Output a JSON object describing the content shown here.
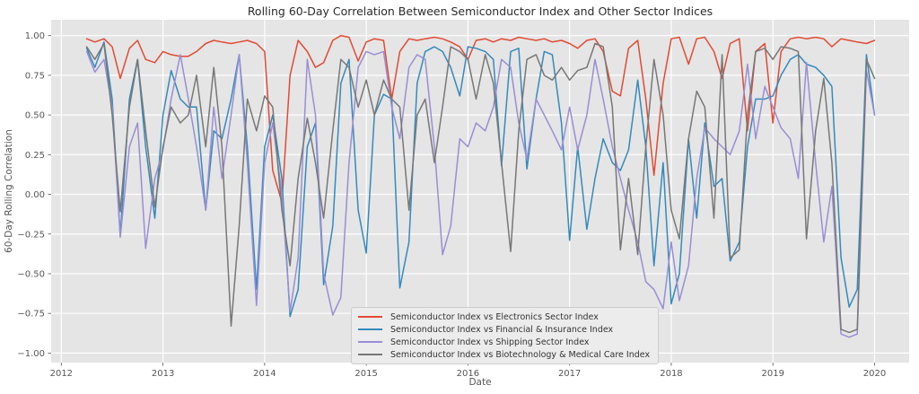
{
  "figure": {
    "title": "Rolling 60-Day Correlation Between Semiconductor Index and Other Sector Indices",
    "background_color": "#ffffff",
    "plot_background_color": "#e5e5e5",
    "gridline_color": "#ffffff",
    "tick_label_color": "#555555",
    "title_color": "#2b2b2b"
  },
  "chart_data": {
    "type": "line",
    "title": "Rolling 60-Day Correlation Between Semiconductor Index and Other Sector Indices",
    "xlabel": "Date",
    "ylabel": "60-Day Rolling Correlation",
    "grid": true,
    "legend_position": "lower center-left",
    "xlim": [
      2011.9,
      2020.34
    ],
    "ylim": [
      -1.06,
      1.1
    ],
    "x_ticks": [
      2012,
      2013,
      2014,
      2015,
      2016,
      2017,
      2018,
      2019,
      2020
    ],
    "x_tick_labels": [
      "2012",
      "2013",
      "2014",
      "2015",
      "2016",
      "2017",
      "2018",
      "2019",
      "2020"
    ],
    "y_ticks": [
      1.0,
      0.75,
      0.5,
      0.25,
      0.0,
      -0.25,
      -0.5,
      -0.75,
      -1.0
    ],
    "y_tick_labels": [
      "1.00",
      "0.75",
      "0.50",
      "0.25",
      "0.00",
      "−0.25",
      "−0.50",
      "−0.75",
      "−1.00"
    ],
    "x": [
      2012.25,
      2012.33,
      2012.42,
      2012.5,
      2012.58,
      2012.67,
      2012.75,
      2012.83,
      2012.92,
      2013.0,
      2013.08,
      2013.17,
      2013.25,
      2013.33,
      2013.42,
      2013.5,
      2013.58,
      2013.67,
      2013.75,
      2013.83,
      2013.92,
      2014.0,
      2014.08,
      2014.17,
      2014.25,
      2014.33,
      2014.42,
      2014.5,
      2014.58,
      2014.67,
      2014.75,
      2014.83,
      2014.92,
      2015.0,
      2015.08,
      2015.17,
      2015.25,
      2015.33,
      2015.42,
      2015.5,
      2015.58,
      2015.67,
      2015.75,
      2015.83,
      2015.92,
      2016.0,
      2016.08,
      2016.17,
      2016.25,
      2016.33,
      2016.42,
      2016.5,
      2016.58,
      2016.67,
      2016.75,
      2016.83,
      2016.92,
      2017.0,
      2017.08,
      2017.17,
      2017.25,
      2017.33,
      2017.42,
      2017.5,
      2017.58,
      2017.67,
      2017.75,
      2017.83,
      2017.92,
      2018.0,
      2018.08,
      2018.17,
      2018.25,
      2018.33,
      2018.42,
      2018.5,
      2018.58,
      2018.67,
      2018.75,
      2018.83,
      2018.92,
      2019.0,
      2019.08,
      2019.17,
      2019.25,
      2019.33,
      2019.42,
      2019.5,
      2019.58,
      2019.67,
      2019.75,
      2019.83,
      2019.92,
      2020.0
    ],
    "series": [
      {
        "name": "Semiconductor Index vs Electronics Sector Index",
        "color": "#E24A33",
        "values": [
          0.98,
          0.96,
          0.98,
          0.93,
          0.73,
          0.92,
          0.97,
          0.85,
          0.83,
          0.9,
          0.88,
          0.87,
          0.87,
          0.9,
          0.95,
          0.97,
          0.96,
          0.95,
          0.96,
          0.97,
          0.95,
          0.9,
          0.15,
          -0.05,
          0.75,
          0.97,
          0.9,
          0.8,
          0.83,
          0.97,
          1.0,
          0.99,
          0.84,
          0.96,
          0.98,
          0.97,
          0.6,
          0.9,
          0.98,
          0.97,
          0.98,
          0.99,
          0.98,
          0.96,
          0.93,
          0.85,
          0.97,
          0.98,
          0.96,
          0.98,
          0.97,
          0.99,
          0.98,
          0.97,
          0.98,
          0.96,
          0.97,
          0.95,
          0.92,
          0.97,
          0.98,
          0.9,
          0.65,
          0.62,
          0.92,
          0.97,
          0.6,
          0.12,
          0.7,
          0.98,
          0.99,
          0.82,
          0.98,
          0.99,
          0.9,
          0.73,
          0.95,
          0.98,
          0.4,
          0.9,
          0.95,
          0.45,
          0.9,
          0.98,
          0.99,
          0.98,
          0.99,
          0.98,
          0.93,
          0.98,
          0.97,
          0.96,
          0.95,
          0.97
        ]
      },
      {
        "name": "Semiconductor Index vs Financial & Insurance Index",
        "color": "#348ABD",
        "values": [
          0.92,
          0.8,
          0.96,
          0.6,
          -0.26,
          0.6,
          0.85,
          0.3,
          -0.15,
          0.5,
          0.78,
          0.6,
          0.55,
          0.55,
          -0.1,
          0.4,
          0.35,
          0.6,
          0.88,
          0.3,
          -0.6,
          0.3,
          0.5,
          0.1,
          -0.77,
          -0.6,
          0.3,
          0.45,
          -0.57,
          -0.2,
          0.7,
          0.85,
          -0.1,
          -0.37,
          0.5,
          0.63,
          0.6,
          -0.59,
          -0.3,
          0.7,
          0.9,
          0.93,
          0.9,
          0.8,
          0.62,
          0.93,
          0.92,
          0.9,
          0.85,
          0.18,
          0.9,
          0.92,
          0.16,
          0.6,
          0.9,
          0.88,
          0.45,
          -0.29,
          0.3,
          -0.22,
          0.1,
          0.35,
          0.2,
          0.15,
          0.28,
          0.72,
          0.3,
          -0.45,
          0.2,
          -0.69,
          -0.5,
          0.35,
          -0.15,
          0.45,
          0.05,
          0.1,
          -0.42,
          -0.3,
          0.3,
          0.6,
          0.6,
          0.62,
          0.75,
          0.85,
          0.88,
          0.82,
          0.8,
          0.75,
          0.68,
          -0.4,
          -0.71,
          -0.6,
          0.88,
          0.5
        ]
      },
      {
        "name": "Semiconductor Index vs Shipping Sector Index",
        "color": "#988ED5",
        "values": [
          0.9,
          0.77,
          0.85,
          0.55,
          -0.27,
          0.3,
          0.45,
          -0.34,
          0.1,
          0.28,
          0.6,
          0.88,
          0.6,
          0.3,
          -0.1,
          0.55,
          0.1,
          0.5,
          0.88,
          0.2,
          -0.7,
          0.2,
          0.45,
          0.0,
          -0.74,
          -0.4,
          0.85,
          0.5,
          -0.5,
          -0.76,
          -0.65,
          0.2,
          0.8,
          0.9,
          0.88,
          0.9,
          0.55,
          0.35,
          0.8,
          0.88,
          0.85,
          0.3,
          -0.38,
          -0.2,
          0.35,
          0.3,
          0.45,
          0.4,
          0.55,
          0.85,
          0.8,
          0.45,
          0.22,
          0.6,
          0.5,
          0.4,
          0.28,
          0.55,
          0.28,
          0.5,
          0.85,
          0.6,
          0.3,
          0.1,
          -0.1,
          -0.3,
          -0.55,
          -0.6,
          -0.72,
          -0.3,
          -0.67,
          -0.45,
          0.1,
          0.42,
          0.35,
          0.3,
          0.25,
          0.4,
          0.82,
          0.35,
          0.68,
          0.55,
          0.42,
          0.35,
          0.1,
          0.83,
          0.2,
          -0.3,
          0.05,
          -0.88,
          -0.9,
          -0.88,
          0.78,
          0.5
        ]
      },
      {
        "name": "Semiconductor Index vs Biotechnology & Medical Care Index",
        "color": "#777777",
        "values": [
          0.93,
          0.85,
          0.95,
          0.5,
          -0.11,
          0.55,
          0.85,
          0.4,
          -0.08,
          0.3,
          0.55,
          0.45,
          0.5,
          0.75,
          0.3,
          0.8,
          0.3,
          -0.83,
          -0.2,
          0.6,
          0.4,
          0.62,
          0.55,
          -0.1,
          -0.45,
          0.1,
          0.48,
          0.2,
          -0.15,
          0.4,
          0.85,
          0.8,
          0.55,
          0.72,
          0.5,
          0.72,
          0.6,
          0.55,
          -0.1,
          0.5,
          0.6,
          0.2,
          0.55,
          0.93,
          0.9,
          0.85,
          0.6,
          0.88,
          0.7,
          0.2,
          -0.36,
          0.4,
          0.85,
          0.88,
          0.75,
          0.72,
          0.8,
          0.72,
          0.78,
          0.8,
          0.95,
          0.93,
          0.55,
          -0.35,
          0.1,
          -0.38,
          0.3,
          0.85,
          0.5,
          -0.1,
          -0.28,
          0.35,
          0.65,
          0.55,
          -0.15,
          0.88,
          -0.4,
          -0.35,
          0.5,
          0.9,
          0.92,
          0.85,
          0.93,
          0.92,
          0.9,
          -0.28,
          0.4,
          0.73,
          0.2,
          -0.85,
          -0.87,
          -0.85,
          0.85,
          0.73
        ]
      }
    ]
  }
}
